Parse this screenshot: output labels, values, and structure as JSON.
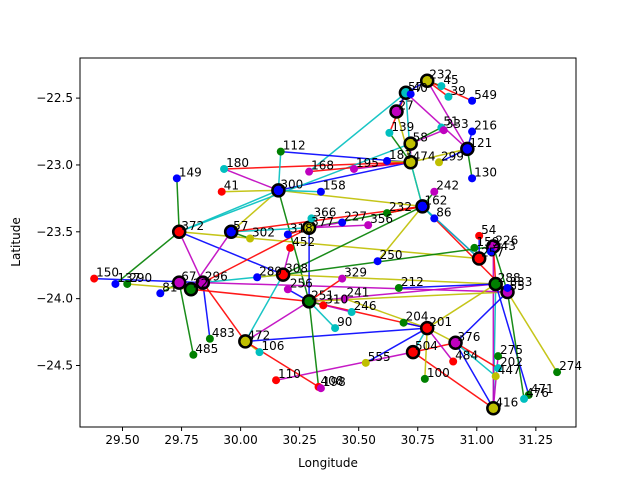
{
  "chart_data": {
    "type": "scatter",
    "title": "",
    "xlabel": "Longitude",
    "ylabel": "Latitude",
    "xlim": [
      29.32,
      31.42
    ],
    "ylim": [
      -24.96,
      -22.2
    ],
    "grid": false,
    "xticks": [
      29.5,
      29.75,
      30.0,
      30.25,
      30.5,
      30.75,
      31.0,
      31.25
    ],
    "xtick_labels": [
      "29.50",
      "29.75",
      "30.00",
      "30.25",
      "30.50",
      "30.75",
      "31.00",
      "31.25"
    ],
    "yticks": [
      -22.5,
      -23.0,
      -23.5,
      -24.0,
      -24.5
    ],
    "ytick_labels": [
      "−22.5",
      "−23.0",
      "−23.5",
      "−24.0",
      "−24.5"
    ],
    "colors": {
      "blue": "#0000ff",
      "green": "#008000",
      "red": "#ff0000",
      "cyan": "#00bfbf",
      "magenta": "#bf00bf",
      "yellow": "#bfbf00",
      "black": "#000000"
    },
    "nodes": [
      {
        "label": "232",
        "x": 30.79,
        "y": -22.37,
        "color": "yellow",
        "hub": true
      },
      {
        "label": "45",
        "x": 30.85,
        "y": -22.41,
        "color": "cyan"
      },
      {
        "label": "549",
        "x": 30.98,
        "y": -22.52,
        "color": "blue"
      },
      {
        "label": "39",
        "x": 30.88,
        "y": -22.49,
        "color": "cyan"
      },
      {
        "label": "57",
        "x": 30.7,
        "y": -22.46,
        "color": "cyan",
        "hub": true
      },
      {
        "label": "40",
        "x": 30.72,
        "y": -22.47,
        "color": "blue"
      },
      {
        "label": "216",
        "x": 30.98,
        "y": -22.75,
        "color": "blue"
      },
      {
        "label": "51",
        "x": 30.85,
        "y": -22.72,
        "color": "cyan"
      },
      {
        "label": "139",
        "x": 30.63,
        "y": -22.76,
        "color": "cyan"
      },
      {
        "label": "112",
        "x": 30.17,
        "y": -22.9,
        "color": "green"
      },
      {
        "label": "149",
        "x": 29.73,
        "y": -23.1,
        "color": "blue"
      },
      {
        "label": "180",
        "x": 29.93,
        "y": -23.03,
        "color": "cyan"
      },
      {
        "label": "168",
        "x": 30.29,
        "y": -23.05,
        "color": "magenta"
      },
      {
        "label": "121",
        "x": 30.96,
        "y": -22.88,
        "color": "blue",
        "hub": true
      },
      {
        "label": "130",
        "x": 30.98,
        "y": -23.1,
        "color": "blue"
      },
      {
        "label": "41",
        "x": 29.92,
        "y": -23.2,
        "color": "red"
      },
      {
        "label": "372",
        "x": 29.74,
        "y": -23.5,
        "color": "red",
        "hub": true
      },
      {
        "label": "226",
        "x": 31.07,
        "y": -23.61,
        "color": "magenta",
        "hub": true
      },
      {
        "label": "54",
        "x": 31.01,
        "y": -23.53,
        "color": "red"
      },
      {
        "label": "257",
        "x": 31.01,
        "y": -23.7,
        "color": "red",
        "hub": true
      },
      {
        "label": "150",
        "x": 29.38,
        "y": -23.85,
        "color": "red"
      },
      {
        "label": "137",
        "x": 29.47,
        "y": -23.89,
        "color": "blue"
      },
      {
        "label": "288",
        "x": 31.08,
        "y": -23.89,
        "color": "green",
        "hub": true
      },
      {
        "label": "55",
        "x": 31.13,
        "y": -23.95,
        "color": "magenta",
        "hub": true
      },
      {
        "label": "246",
        "x": 30.47,
        "y": -24.1,
        "color": "cyan"
      },
      {
        "label": "90",
        "x": 30.4,
        "y": -24.22,
        "color": "cyan"
      },
      {
        "label": "483",
        "x": 29.87,
        "y": -24.3,
        "color": "green"
      },
      {
        "label": "472",
        "x": 30.02,
        "y": -24.32,
        "color": "yellow",
        "hub": true
      },
      {
        "label": "485",
        "x": 29.8,
        "y": -24.42,
        "color": "green"
      },
      {
        "label": "106",
        "x": 30.08,
        "y": -24.4,
        "color": "cyan"
      },
      {
        "label": "555",
        "x": 30.53,
        "y": -24.48,
        "color": "yellow"
      },
      {
        "label": "504",
        "x": 30.73,
        "y": -24.4,
        "color": "red",
        "hub": true
      },
      {
        "label": "100",
        "x": 30.78,
        "y": -24.6,
        "color": "green"
      },
      {
        "label": "110",
        "x": 30.15,
        "y": -24.61,
        "color": "red"
      },
      {
        "label": "408",
        "x": 30.33,
        "y": -24.66,
        "color": "red"
      },
      {
        "label": "198",
        "x": 30.34,
        "y": -24.67,
        "color": "magenta"
      },
      {
        "label": "275",
        "x": 31.09,
        "y": -24.43,
        "color": "green"
      },
      {
        "label": "202",
        "x": 31.09,
        "y": -24.52,
        "color": "cyan"
      },
      {
        "label": "447",
        "x": 31.08,
        "y": -24.58,
        "color": "yellow"
      },
      {
        "label": "274",
        "x": 31.34,
        "y": -24.55,
        "color": "green"
      },
      {
        "label": "471",
        "x": 31.22,
        "y": -24.72,
        "color": "green"
      },
      {
        "label": "476",
        "x": 31.2,
        "y": -24.75,
        "color": "cyan"
      },
      {
        "label": "416",
        "x": 31.07,
        "y": -24.82,
        "color": "yellow",
        "hub": true
      },
      {
        "label": "241",
        "x": 30.44,
        "y": -24.0,
        "color": "magenta"
      },
      {
        "label": "204",
        "x": 30.69,
        "y": -24.18,
        "color": "green"
      },
      {
        "label": "201",
        "x": 30.79,
        "y": -24.22,
        "color": "red",
        "hub": true
      },
      {
        "label": "376",
        "x": 30.91,
        "y": -24.33,
        "color": "magenta",
        "hub": true
      },
      {
        "label": "484",
        "x": 30.9,
        "y": -24.47,
        "color": "red"
      },
      {
        "label": "333",
        "x": 31.13,
        "y": -23.92,
        "color": "blue"
      },
      {
        "label": "443",
        "x": 31.06,
        "y": -23.65,
        "color": "blue"
      },
      {
        "label": "159",
        "x": 30.99,
        "y": -23.62,
        "color": "green"
      },
      {
        "label": "356",
        "x": 30.54,
        "y": -23.45,
        "color": "magenta"
      },
      {
        "label": "250",
        "x": 30.58,
        "y": -23.72,
        "color": "blue"
      },
      {
        "label": "212",
        "x": 30.67,
        "y": -23.92,
        "color": "green"
      },
      {
        "label": "57b",
        "x": 29.96,
        "y": -23.5,
        "color": "blue",
        "hub": true
      },
      {
        "label": "302",
        "x": 30.04,
        "y": -23.55,
        "color": "yellow"
      },
      {
        "label": "318",
        "x": 30.2,
        "y": -23.52,
        "color": "blue"
      },
      {
        "label": "377",
        "x": 30.29,
        "y": -23.47,
        "color": "yellow",
        "hub": true
      },
      {
        "label": "366",
        "x": 30.3,
        "y": -23.4,
        "color": "cyan"
      },
      {
        "label": "452",
        "x": 30.21,
        "y": -23.62,
        "color": "red"
      },
      {
        "label": "308",
        "x": 30.18,
        "y": -23.82,
        "color": "red",
        "hub": true
      },
      {
        "label": "289",
        "x": 30.07,
        "y": -23.84,
        "color": "blue"
      },
      {
        "label": "256",
        "x": 30.2,
        "y": -23.93,
        "color": "magenta"
      },
      {
        "label": "251",
        "x": 30.29,
        "y": -24.02,
        "color": "green",
        "hub": true
      },
      {
        "label": "310",
        "x": 30.35,
        "y": -24.05,
        "color": "red"
      },
      {
        "label": "329",
        "x": 30.43,
        "y": -23.85,
        "color": "magenta"
      },
      {
        "label": "300",
        "x": 30.16,
        "y": -23.19,
        "color": "blue",
        "hub": true
      },
      {
        "label": "158",
        "x": 30.34,
        "y": -23.2,
        "color": "blue"
      },
      {
        "label": "195",
        "x": 30.48,
        "y": -23.03,
        "color": "magenta"
      },
      {
        "label": "183",
        "x": 30.62,
        "y": -22.97,
        "color": "blue"
      },
      {
        "label": "474",
        "x": 30.72,
        "y": -22.98,
        "color": "yellow",
        "hub": true
      },
      {
        "label": "299",
        "x": 30.84,
        "y": -22.98,
        "color": "yellow"
      },
      {
        "label": "242",
        "x": 30.82,
        "y": -23.2,
        "color": "magenta"
      },
      {
        "label": "162",
        "x": 30.77,
        "y": -23.31,
        "color": "blue",
        "hub": true
      },
      {
        "label": "232b",
        "x": 30.62,
        "y": -23.36,
        "color": "green"
      },
      {
        "label": "86",
        "x": 30.82,
        "y": -23.4,
        "color": "blue"
      },
      {
        "label": "227",
        "x": 30.43,
        "y": -23.43,
        "color": "blue"
      },
      {
        "label": "296",
        "x": 29.84,
        "y": -23.88,
        "color": "magenta",
        "hub": true
      },
      {
        "label": "22",
        "x": 29.79,
        "y": -23.93,
        "color": "green",
        "hub": true
      },
      {
        "label": "67",
        "x": 29.74,
        "y": -23.88,
        "color": "magenta",
        "hub": true
      },
      {
        "label": "81",
        "x": 29.66,
        "y": -23.96,
        "color": "blue"
      },
      {
        "label": "290",
        "x": 29.52,
        "y": -23.89,
        "color": "green"
      },
      {
        "label": "58",
        "x": 30.72,
        "y": -22.84,
        "color": "yellow",
        "hub": true
      },
      {
        "label": "27",
        "x": 30.66,
        "y": -22.6,
        "color": "magenta",
        "hub": true
      },
      {
        "label": "333b",
        "x": 30.86,
        "y": -22.74,
        "color": "magenta"
      }
    ],
    "edges_sample": [
      [
        "232",
        "57"
      ],
      [
        "232",
        "45"
      ],
      [
        "57",
        "139"
      ],
      [
        "57",
        "168"
      ],
      [
        "232",
        "121"
      ],
      [
        "121",
        "474"
      ],
      [
        "112",
        "474"
      ],
      [
        "149",
        "372"
      ],
      [
        "180",
        "474"
      ],
      [
        "372",
        "300"
      ],
      [
        "372",
        "296"
      ],
      [
        "372",
        "257"
      ],
      [
        "150",
        "296"
      ],
      [
        "137",
        "372"
      ],
      [
        "296",
        "472"
      ],
      [
        "296",
        "308"
      ],
      [
        "472",
        "251"
      ],
      [
        "472",
        "106"
      ],
      [
        "483",
        "296"
      ],
      [
        "485",
        "67"
      ],
      [
        "504",
        "416"
      ],
      [
        "416",
        "288"
      ],
      [
        "416",
        "226"
      ],
      [
        "201",
        "376"
      ],
      [
        "376",
        "55"
      ],
      [
        "55",
        "288"
      ],
      [
        "288",
        "226"
      ],
      [
        "226",
        "257"
      ],
      [
        "257",
        "162"
      ],
      [
        "162",
        "474"
      ],
      [
        "474",
        "300"
      ],
      [
        "300",
        "251"
      ],
      [
        "251",
        "201"
      ],
      [
        "201",
        "504"
      ],
      [
        "504",
        "110"
      ],
      [
        "308",
        "288"
      ],
      [
        "308",
        "372"
      ],
      [
        "377",
        "162"
      ],
      [
        "377",
        "296"
      ],
      [
        "377",
        "57b"
      ],
      [
        "57b",
        "22"
      ],
      [
        "57b",
        "300"
      ],
      [
        "22",
        "67"
      ],
      [
        "67",
        "81"
      ],
      [
        "162",
        "55"
      ],
      [
        "162",
        "257"
      ],
      [
        "58",
        "474"
      ],
      [
        "27",
        "474"
      ],
      [
        "27",
        "57"
      ],
      [
        "121",
        "130"
      ],
      [
        "232",
        "549"
      ],
      [
        "474",
        "162"
      ],
      [
        "251",
        "288"
      ],
      [
        "251",
        "55"
      ],
      [
        "472",
        "201"
      ],
      [
        "308",
        "162"
      ],
      [
        "57b",
        "162"
      ],
      [
        "372",
        "58"
      ],
      [
        "296",
        "55"
      ],
      [
        "201",
        "288"
      ],
      [
        "376",
        "416"
      ],
      [
        "226",
        "55"
      ],
      [
        "504",
        "376"
      ],
      [
        "474",
        "57"
      ],
      [
        "57",
        "121"
      ],
      [
        "300",
        "162"
      ],
      [
        "377",
        "251"
      ],
      [
        "308",
        "226"
      ],
      [
        "22",
        "251"
      ],
      [
        "472",
        "308"
      ],
      [
        "275",
        "416"
      ],
      [
        "274",
        "55"
      ],
      [
        "471",
        "288"
      ],
      [
        "476",
        "55"
      ],
      [
        "202",
        "376"
      ],
      [
        "447",
        "376"
      ],
      [
        "484",
        "201"
      ],
      [
        "100",
        "201"
      ],
      [
        "555",
        "201"
      ],
      [
        "408",
        "251"
      ],
      [
        "198",
        "472"
      ],
      [
        "90",
        "251"
      ],
      [
        "246",
        "251"
      ],
      [
        "241",
        "201"
      ],
      [
        "204",
        "201"
      ],
      [
        "333",
        "55"
      ],
      [
        "443",
        "226"
      ],
      [
        "159",
        "257"
      ],
      [
        "356",
        "377"
      ],
      [
        "250",
        "162"
      ],
      [
        "212",
        "288"
      ],
      [
        "302",
        "57b"
      ],
      [
        "318",
        "377"
      ],
      [
        "366",
        "377"
      ],
      [
        "452",
        "308"
      ],
      [
        "289",
        "308"
      ],
      [
        "256",
        "251"
      ],
      [
        "310",
        "251"
      ],
      [
        "329",
        "251"
      ],
      [
        "158",
        "300"
      ],
      [
        "195",
        "474"
      ],
      [
        "183",
        "474"
      ],
      [
        "299",
        "121"
      ],
      [
        "242",
        "162"
      ],
      [
        "232b",
        "162"
      ],
      [
        "86",
        "162"
      ],
      [
        "227",
        "377"
      ],
      [
        "290",
        "22"
      ],
      [
        "216",
        "121"
      ],
      [
        "51",
        "58"
      ],
      [
        "39",
        "232"
      ],
      [
        "40",
        "57"
      ],
      [
        "333b",
        "58"
      ],
      [
        "41",
        "300"
      ],
      [
        "54",
        "257"
      ],
      [
        "139",
        "474"
      ],
      [
        "168",
        "474"
      ],
      [
        "112",
        "300"
      ],
      [
        "180",
        "300"
      ]
    ],
    "extra_tick_labels": [
      "168",
      "139",
      "216",
      "121",
      "549",
      "45",
      "39",
      "57",
      "40",
      "51",
      "333",
      "149",
      "180",
      "41",
      "372",
      "226",
      "443",
      "54",
      "257",
      "150",
      "137",
      "288",
      "55",
      "246",
      "90",
      "483",
      "472",
      "485",
      "106",
      "555",
      "504",
      "100",
      "110",
      "408",
      "198",
      "275",
      "202",
      "447",
      "274",
      "471",
      "476",
      "416",
      "241",
      "204",
      "201",
      "376",
      "484",
      "333",
      "159",
      "356",
      "250",
      "212",
      "302",
      "318",
      "377",
      "366",
      "452",
      "308",
      "289",
      "256",
      "251",
      "310",
      "329",
      "300",
      "158",
      "195",
      "183",
      "474",
      "299",
      "242",
      "162",
      "86",
      "227",
      "296",
      "22",
      "67",
      "81",
      "290",
      "58",
      "27",
      "112",
      "130"
    ]
  }
}
